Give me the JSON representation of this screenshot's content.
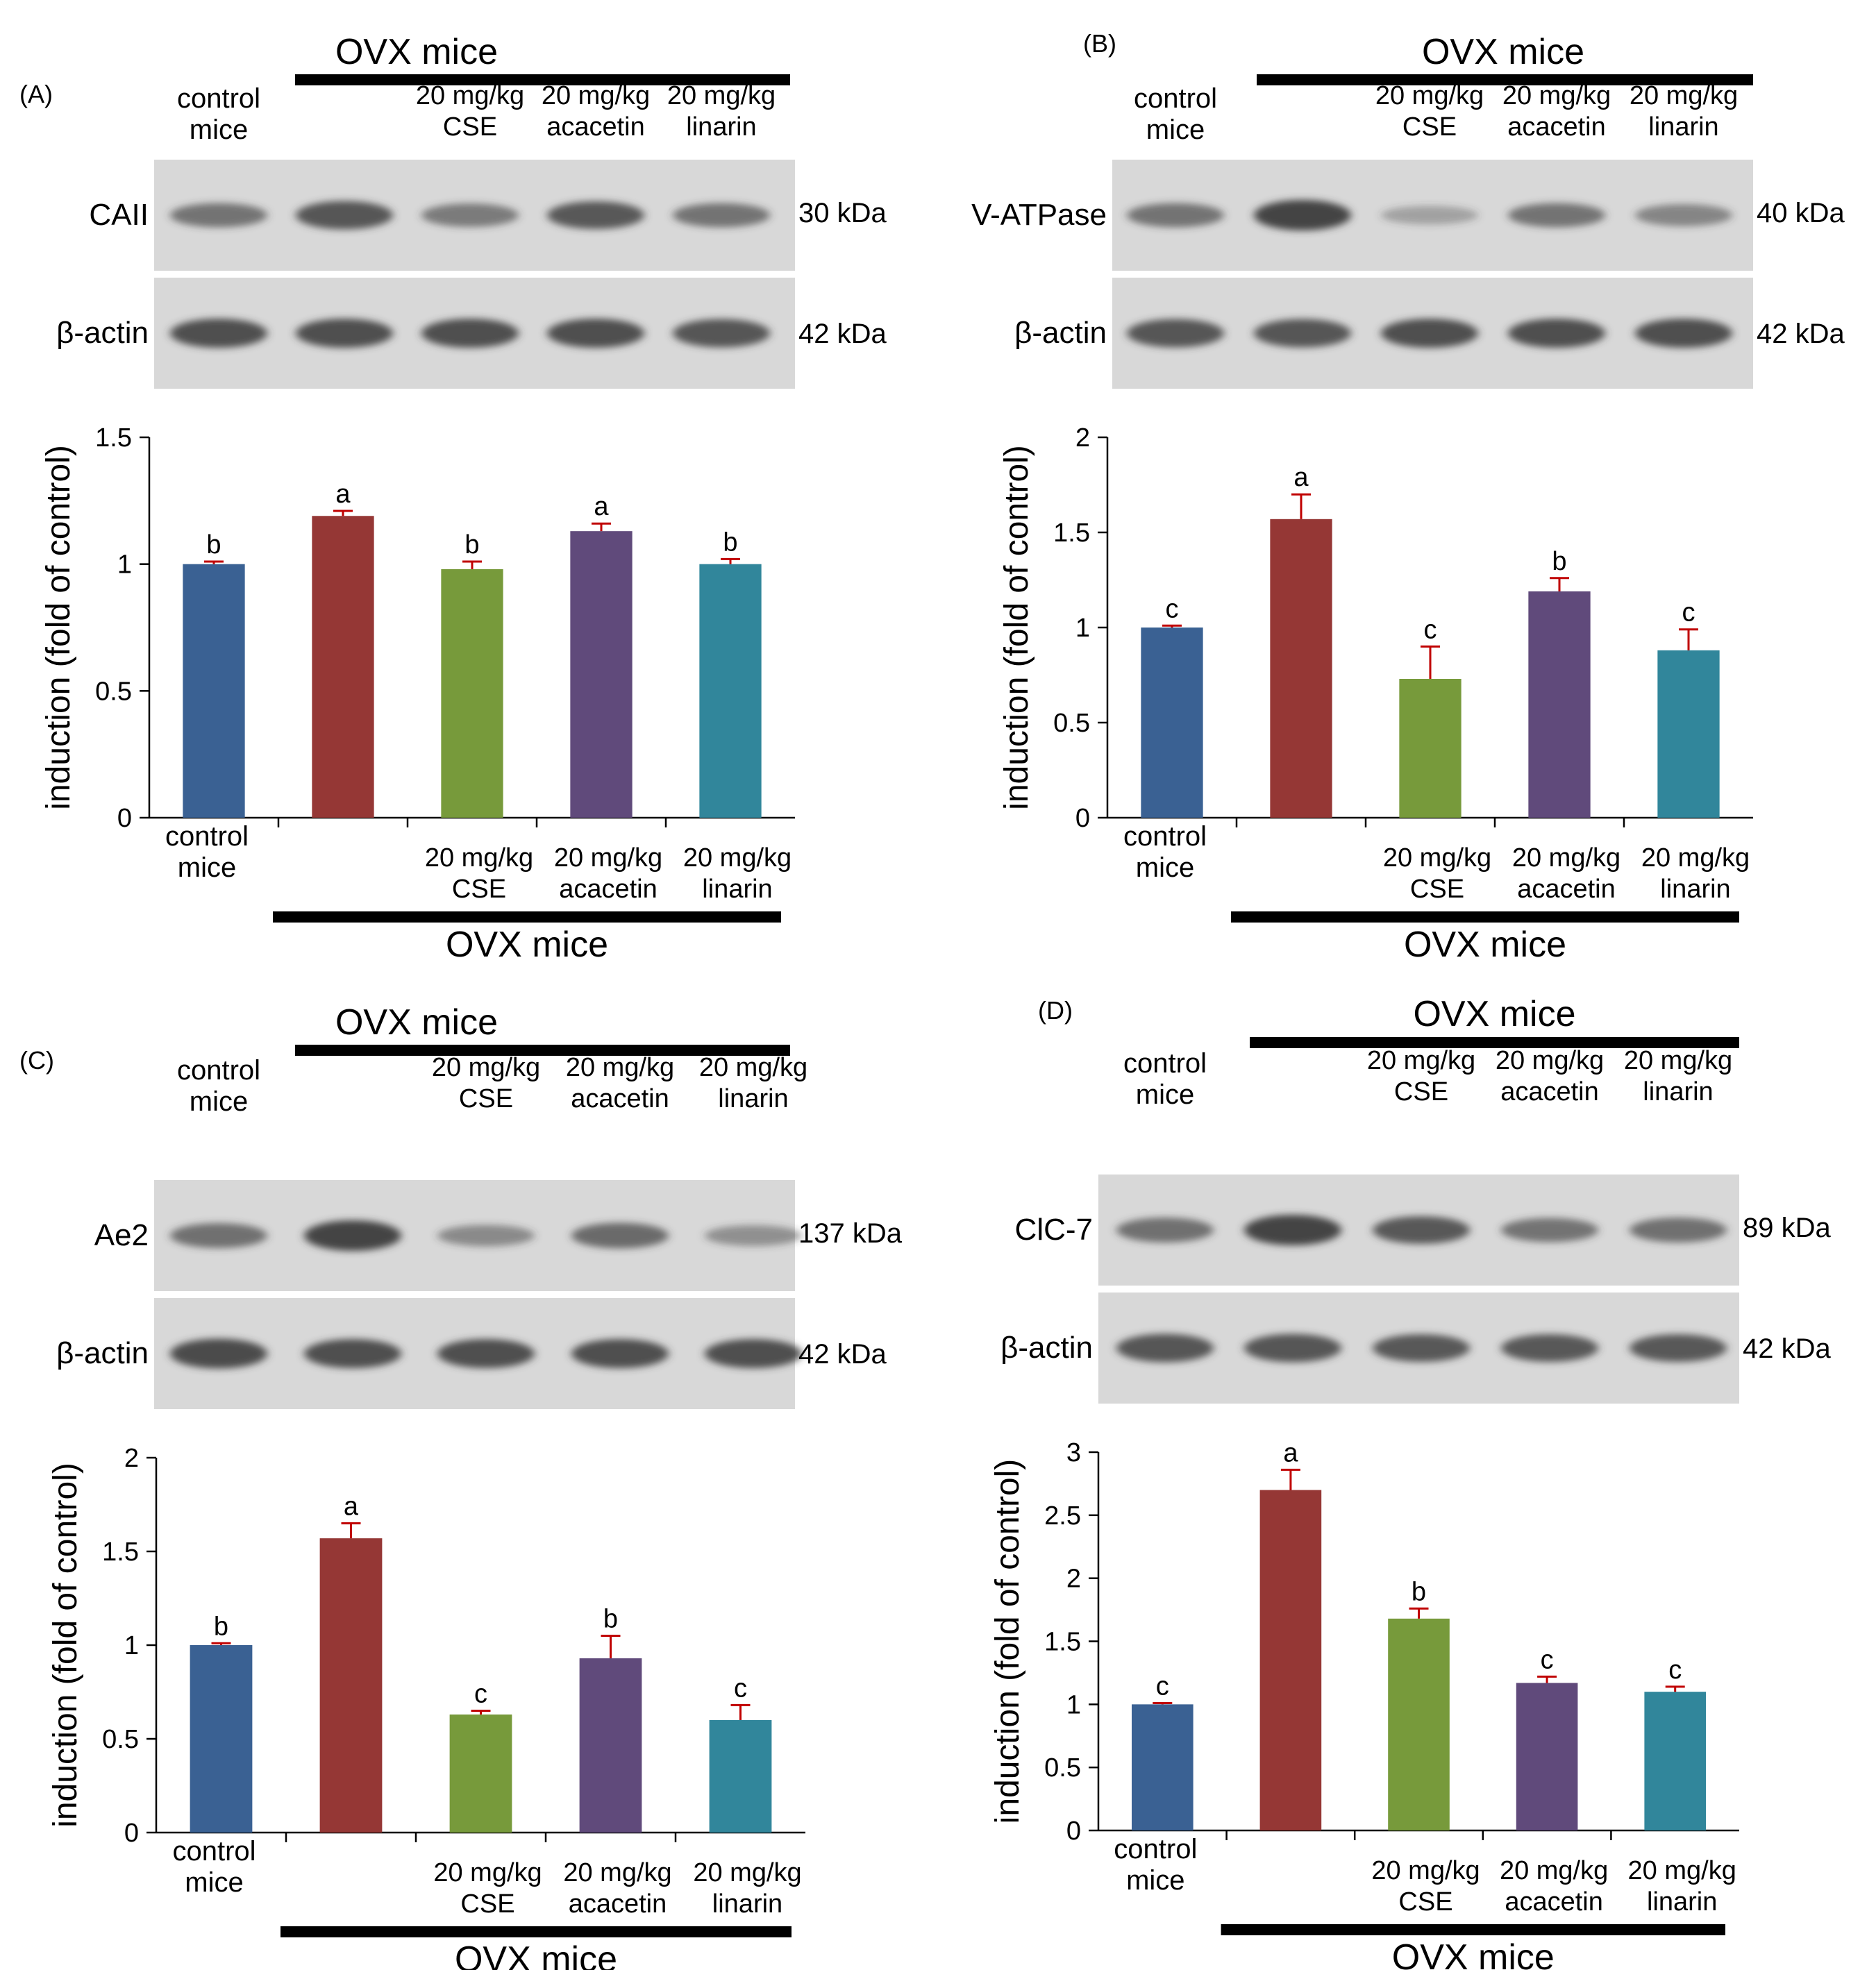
{
  "colors": {
    "control": "#3a6193",
    "ovx": "#953735",
    "cse": "#779a3b",
    "acacetin": "#604a7b",
    "linarin": "#31869b",
    "error_bar": "#c00000",
    "blot_background": "#d8d8d8",
    "band": "#3c3c3c"
  },
  "icons": {
    "blot": "western-blot-band-image"
  },
  "common": {
    "control_label": [
      "control",
      "mice"
    ],
    "ovx_label": "OVX mice",
    "dose_label": "20 mg/kg",
    "treatments": [
      "CSE",
      "acacetin",
      "linarin"
    ],
    "ylabel": "induction (fold of control)"
  },
  "chart_data": [
    {
      "type": "bar",
      "panel": "(A)",
      "protein": "CAII",
      "protein_kda": "30 kDa",
      "actin_label": "β-actin",
      "actin_kda": "42 kDa",
      "categories": [
        "control mice",
        "OVX mice",
        "20 mg/kg CSE",
        "20 mg/kg acacetin",
        "20 mg/kg linarin"
      ],
      "values": [
        1.0,
        1.19,
        0.98,
        1.13,
        1.0
      ],
      "errors": [
        0.01,
        0.02,
        0.03,
        0.03,
        0.02
      ],
      "letters": [
        "b",
        "a",
        "b",
        "a",
        "b"
      ],
      "ylabel": "induction (fold of control)",
      "ylim": [
        0,
        1.5
      ],
      "yticks": [
        "0",
        "0.5",
        "1",
        "1.5"
      ],
      "ytick_values": [
        0,
        0.5,
        1,
        1.5
      ],
      "grid": false,
      "legend": "none",
      "bands_protein": [
        0.55,
        0.85,
        0.5,
        0.8,
        0.55
      ],
      "bands_actin": [
        0.9,
        0.9,
        0.9,
        0.9,
        0.85
      ]
    },
    {
      "type": "bar",
      "panel": "(B)",
      "protein": "V-ATPase",
      "protein_kda": "40 kDa",
      "actin_label": "β-actin",
      "actin_kda": "42 kDa",
      "categories": [
        "control mice",
        "OVX mice",
        "20 mg/kg CSE",
        "20 mg/kg acacetin",
        "20 mg/kg linarin"
      ],
      "values": [
        1.0,
        1.57,
        0.73,
        1.19,
        0.88
      ],
      "errors": [
        0.01,
        0.13,
        0.17,
        0.07,
        0.11
      ],
      "letters": [
        "c",
        "a",
        "c",
        "b",
        "c"
      ],
      "ylabel": "induction (fold of control)",
      "ylim": [
        0,
        2
      ],
      "yticks": [
        "0",
        "0.5",
        "1",
        "1.5",
        "2"
      ],
      "ytick_values": [
        0,
        0.5,
        1,
        1.5,
        2
      ],
      "grid": false,
      "legend": "none",
      "bands_protein": [
        0.55,
        1.0,
        0.15,
        0.55,
        0.4
      ],
      "bands_actin": [
        0.85,
        0.85,
        0.9,
        0.9,
        0.9
      ]
    },
    {
      "type": "bar",
      "panel": "(C)",
      "protein": "Ae2",
      "protein_kda": "137 kDa",
      "actin_label": "β-actin",
      "actin_kda": "42 kDa",
      "categories": [
        "control mice",
        "OVX mice",
        "20 mg/kg CSE",
        "20 mg/kg acacetin",
        "20 mg/kg linarin"
      ],
      "values": [
        1.0,
        1.57,
        0.63,
        0.93,
        0.6
      ],
      "errors": [
        0.01,
        0.08,
        0.02,
        0.12,
        0.08
      ],
      "letters": [
        "b",
        "a",
        "c",
        "b",
        "c"
      ],
      "ylabel": "induction (fold of control)",
      "ylim": [
        0,
        2
      ],
      "yticks": [
        "0",
        "0.5",
        "1",
        "1.5",
        "2"
      ],
      "ytick_values": [
        0,
        0.5,
        1,
        1.5,
        2
      ],
      "grid": false,
      "legend": "none",
      "bands_protein": [
        0.6,
        1.0,
        0.35,
        0.65,
        0.3
      ],
      "bands_actin": [
        0.95,
        0.9,
        0.9,
        0.9,
        0.9
      ]
    },
    {
      "type": "bar",
      "panel": "(D)",
      "protein": "ClC-7",
      "protein_kda": "89 kDa",
      "actin_label": "β-actin",
      "actin_kda": "42 kDa",
      "categories": [
        "control mice",
        "OVX mice",
        "20 mg/kg CSE",
        "20 mg/kg acacetin",
        "20 mg/kg linarin"
      ],
      "values": [
        1.0,
        2.7,
        1.68,
        1.17,
        1.1
      ],
      "errors": [
        0.01,
        0.16,
        0.08,
        0.05,
        0.04
      ],
      "letters": [
        "c",
        "a",
        "b",
        "c",
        "c"
      ],
      "ylabel": "induction (fold of control)",
      "ylim": [
        0,
        3
      ],
      "yticks": [
        "0",
        "0.5",
        "1",
        "1.5",
        "2",
        "2.5",
        "3"
      ],
      "ytick_values": [
        0,
        0.5,
        1,
        1.5,
        2,
        2.5,
        3
      ],
      "grid": false,
      "legend": "none",
      "bands_protein": [
        0.6,
        1.0,
        0.8,
        0.55,
        0.6
      ],
      "bands_actin": [
        0.85,
        0.85,
        0.8,
        0.8,
        0.8
      ]
    }
  ]
}
